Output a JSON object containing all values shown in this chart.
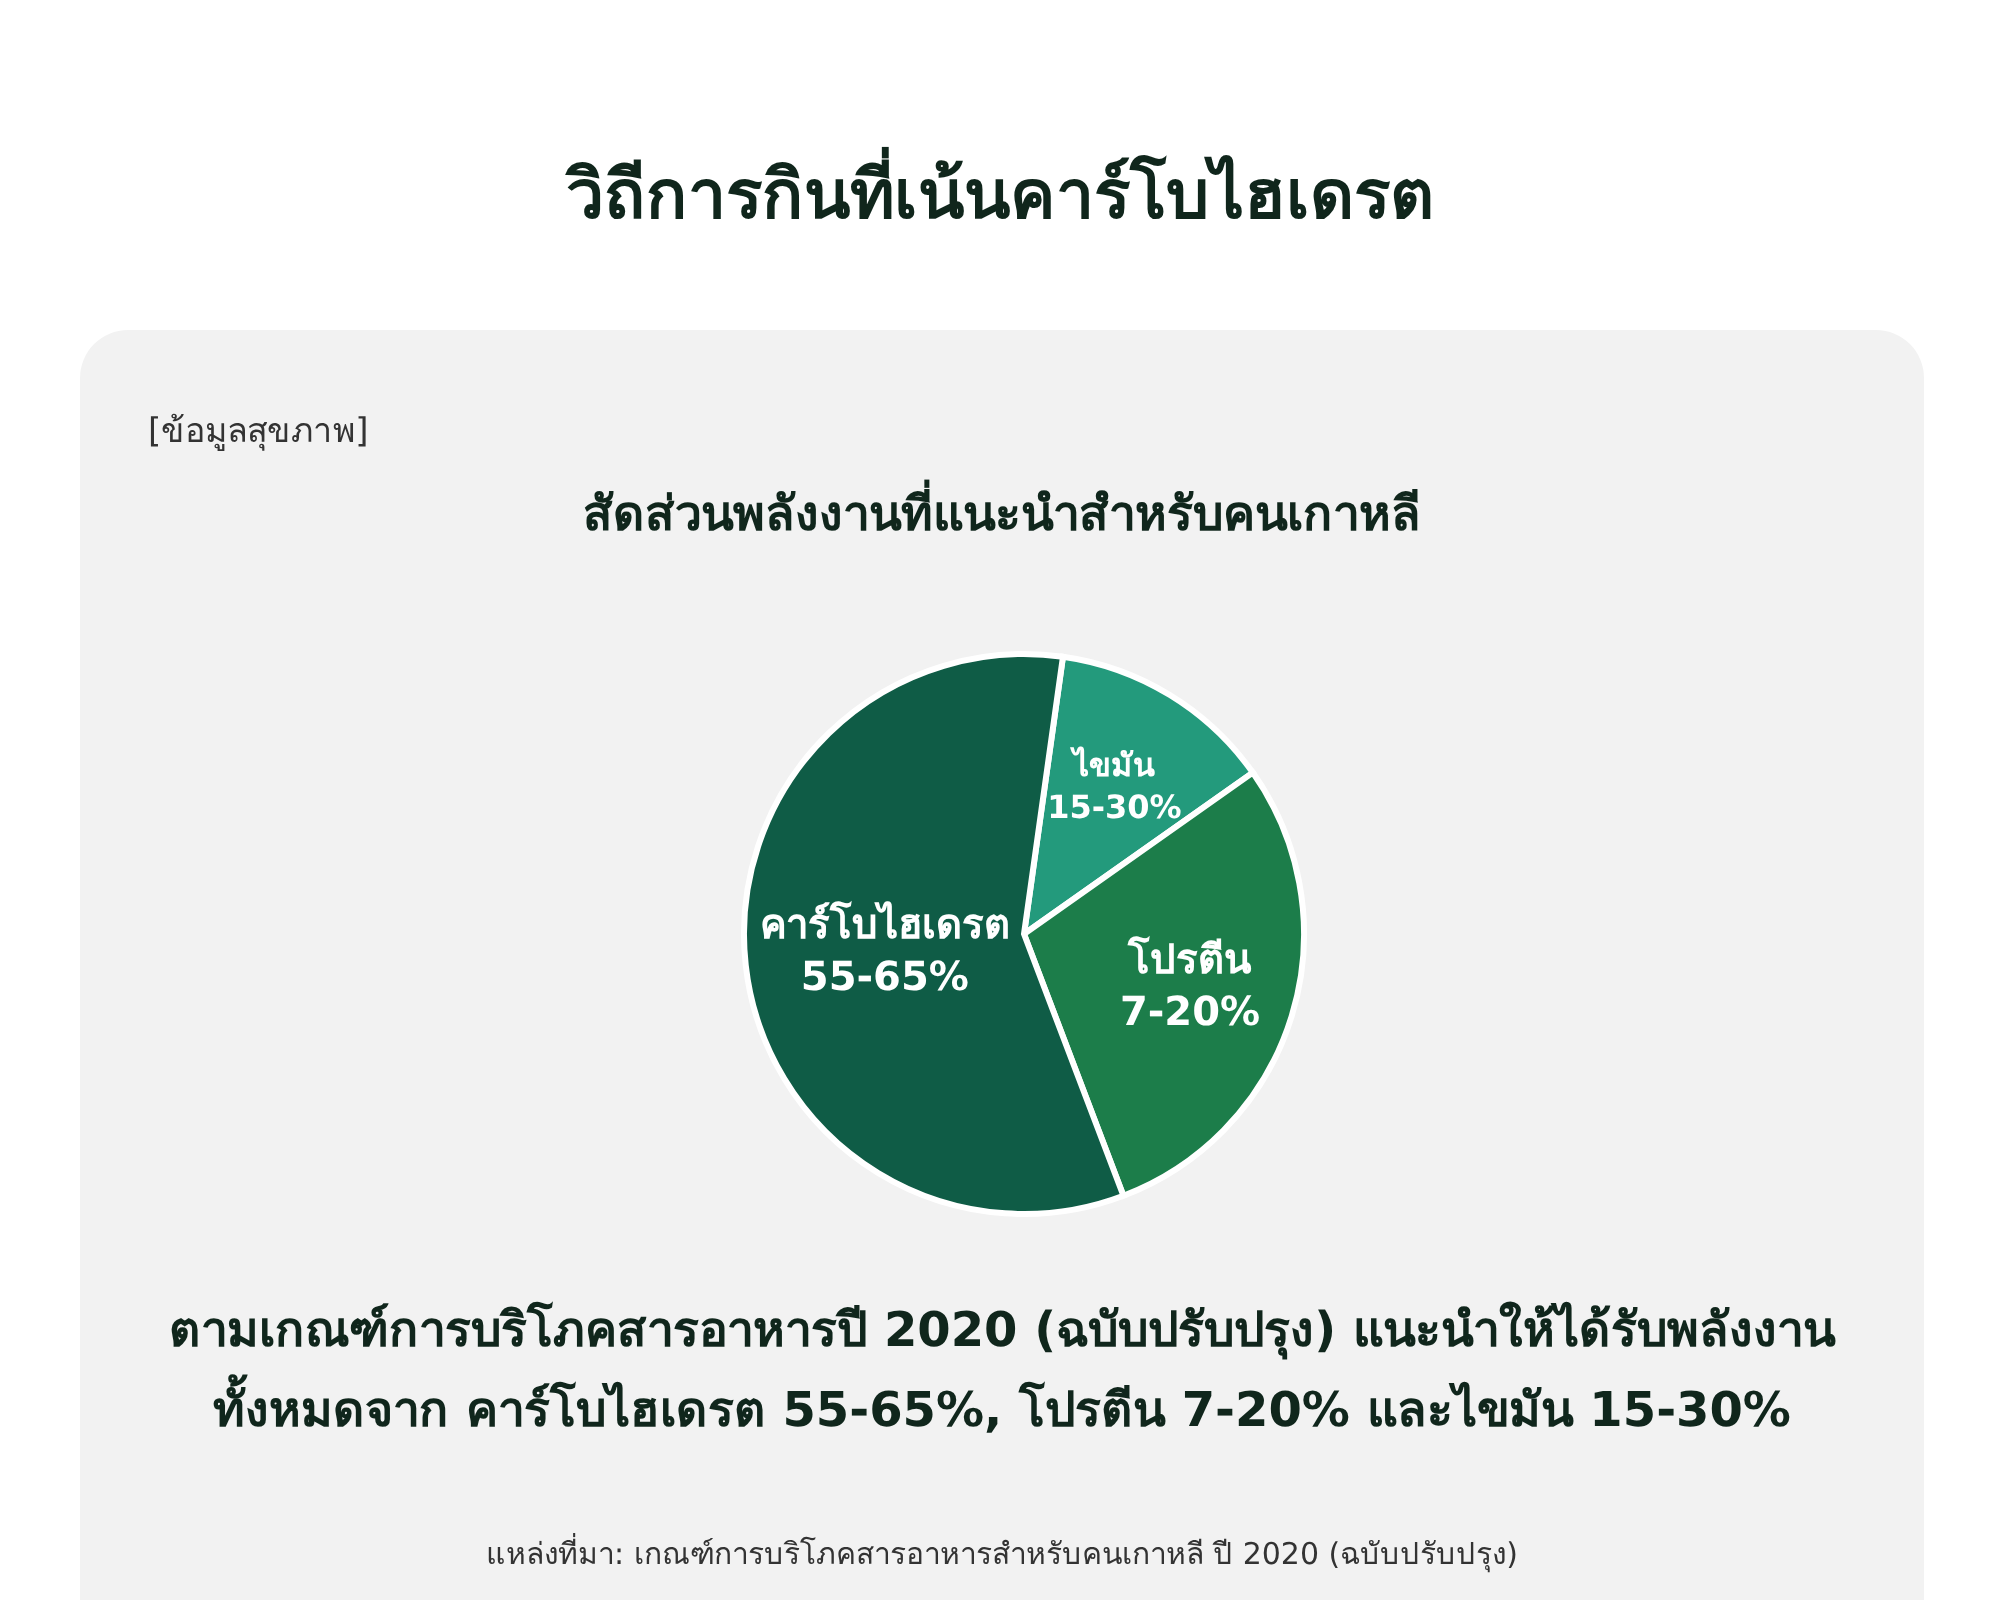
{
  "chart_data": {
    "type": "pie",
    "title": "วิถีการกินที่เน้นคาร์โบไฮเดรต",
    "subtitle": "สัดส่วนพลังงานที่แนะนำสำหรับคนเกาหลี",
    "categories": [
      "ไขมัน 15-30%",
      "โปรตีน 7-20%",
      "คาร์โบไฮเดรต 55-65%"
    ],
    "values": [
      13,
      29,
      58
    ],
    "colors": [
      "#239a7c",
      "#1c7d4a",
      "#0f5c46"
    ],
    "annotations": [
      "[ข้อมูลสุขภาพ]",
      "ตามเกณฑ์การบริโภคสารอาหารปี 2020 (ฉบับปรับปรุง) แนะนำให้ได้รับพลังงานทั้งหมดจาก คาร์โบไฮเดรต 55-65%, โปรตีน 7-20% และไขมัน 15-30%",
      "แหล่งที่มา: เกณฑ์การบริโภคสารอาหารสำหรับคนเกาหลี ปี 2020 (ฉบับปรับปรุง)"
    ]
  }
}
